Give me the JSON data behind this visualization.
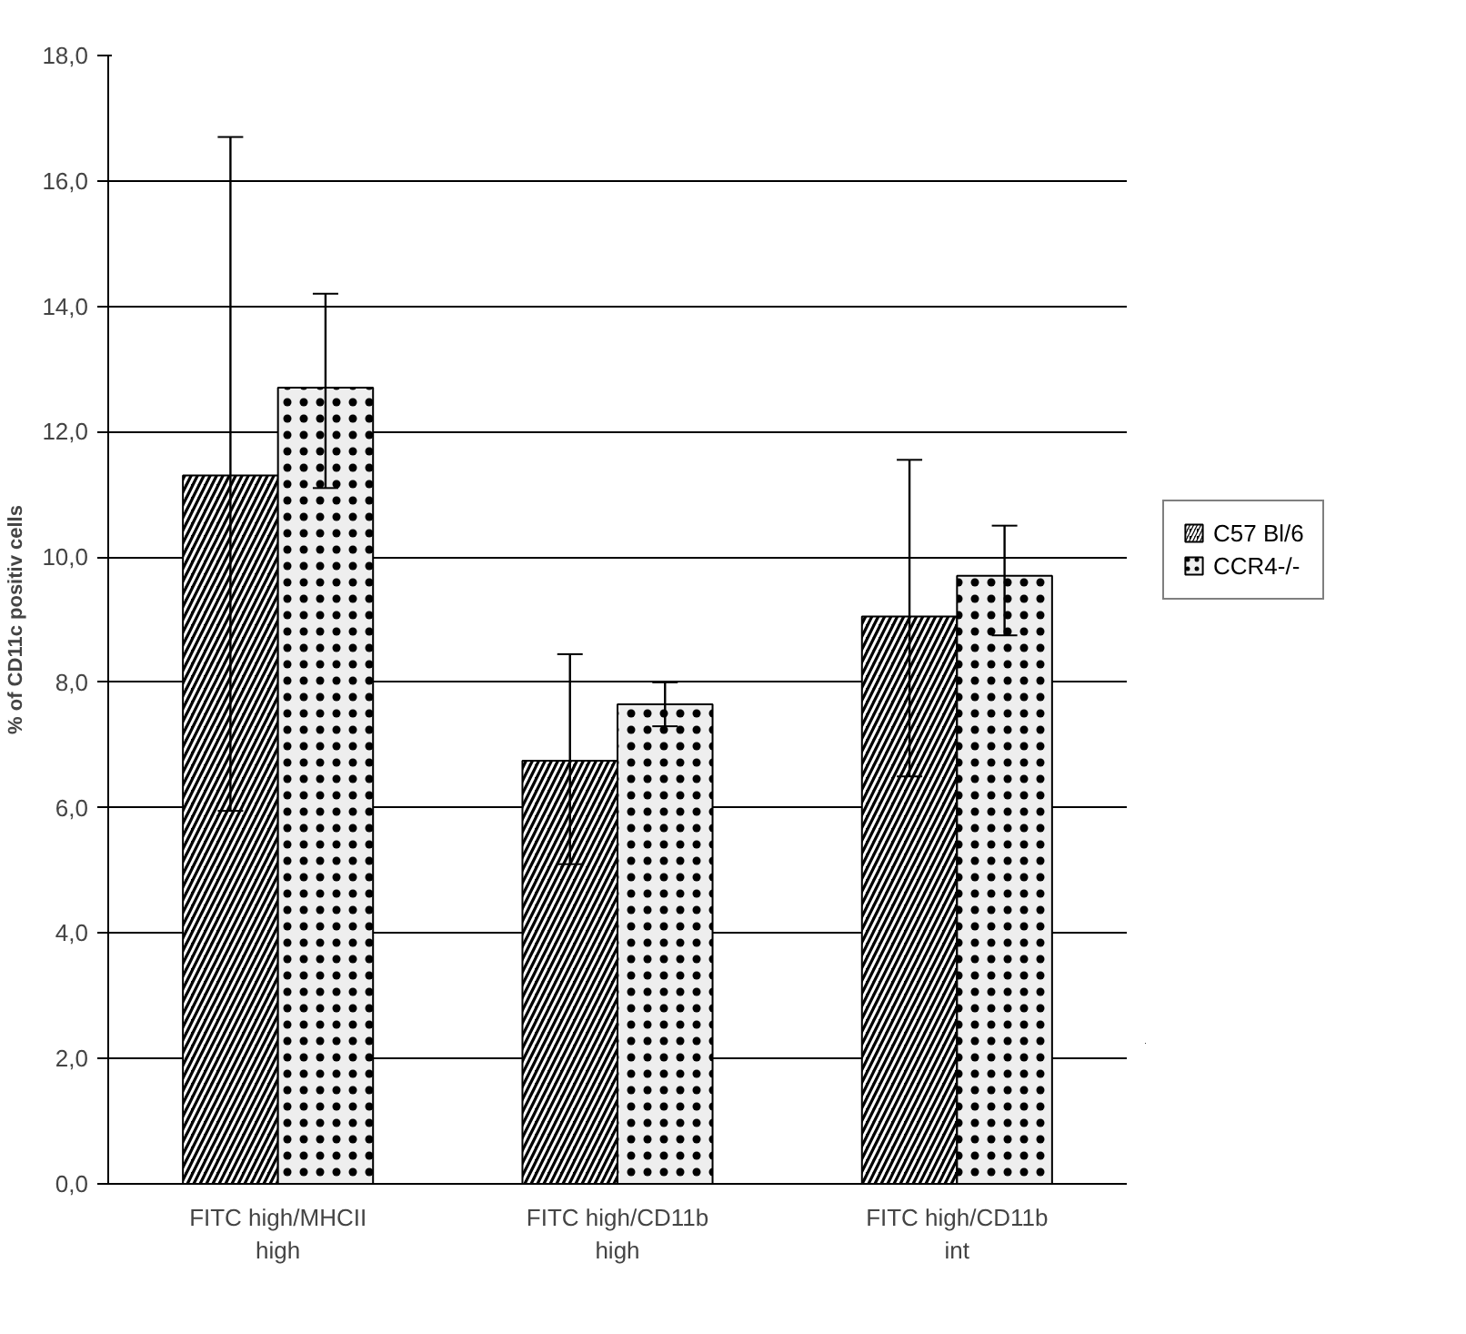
{
  "chart_data": {
    "type": "bar",
    "ylabel": "% of CD11c positiv cells",
    "categories": [
      "FITC high/MHCII high",
      "FITC high/CD11b high",
      "FITC high/CD11b int"
    ],
    "series": [
      {
        "name": "C57 Bl/6",
        "color": "#000000",
        "values": [
          11.3,
          6.75,
          9.05
        ],
        "errors": [
          [
            5.95,
            16.7
          ],
          [
            5.1,
            8.45
          ],
          [
            6.5,
            11.55
          ]
        ]
      },
      {
        "name": "CCR4-/-",
        "color": "#eeeeee",
        "values": [
          12.7,
          7.65,
          9.7
        ],
        "errors": [
          [
            11.1,
            14.2
          ],
          [
            7.3,
            8.0
          ],
          [
            8.75,
            10.5
          ]
        ]
      }
    ],
    "ylim": [
      0,
      18
    ],
    "yticks": [
      {
        "value": 0,
        "label": "0,0"
      },
      {
        "value": 2,
        "label": "2,0"
      },
      {
        "value": 4,
        "label": "4,0"
      },
      {
        "value": 6,
        "label": "6,0"
      },
      {
        "value": 8,
        "label": "8,0"
      },
      {
        "value": 10,
        "label": "10,0"
      },
      {
        "value": 12,
        "label": "12,0"
      },
      {
        "value": 14,
        "label": "14,0"
      },
      {
        "value": 16,
        "label": "16,0"
      },
      {
        "value": 18,
        "label": "18,0"
      }
    ],
    "grid": "y",
    "legend": "right"
  }
}
